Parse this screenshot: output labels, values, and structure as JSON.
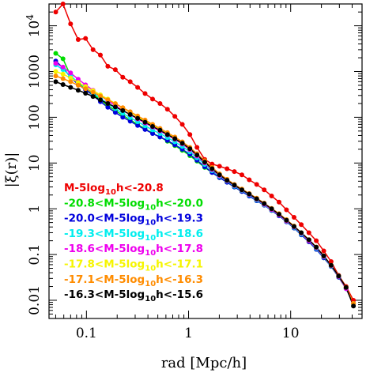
{
  "chart_data": {
    "type": "line",
    "title": "",
    "xlabel": "rad [Mpc/h]",
    "ylabel": "|ξ(r)|",
    "xscale": "log",
    "yscale": "log",
    "xlim": [
      0.043,
      50
    ],
    "ylim": [
      0.004,
      30000
    ],
    "x_ticks": [
      {
        "value": 0.1,
        "label": "0.1"
      },
      {
        "value": 1,
        "label": "1"
      },
      {
        "value": 10,
        "label": "10"
      }
    ],
    "y_ticks": [
      {
        "value": 0.01,
        "label": "0.01"
      },
      {
        "value": 0.1,
        "label": "0.1"
      },
      {
        "value": 1,
        "label": "1"
      },
      {
        "value": 10,
        "label": "10"
      },
      {
        "value": 100,
        "label": "100"
      },
      {
        "value": 1000,
        "label": "1000"
      },
      {
        "value": 10000,
        "label": "10",
        "sup": "4"
      }
    ],
    "grid": false,
    "legend_position": "bottom-left",
    "x": [
      0.05,
      0.059,
      0.07,
      0.083,
      0.098,
      0.116,
      0.137,
      0.162,
      0.192,
      0.227,
      0.268,
      0.317,
      0.375,
      0.444,
      0.525,
      0.621,
      0.734,
      0.868,
      1.03,
      1.21,
      1.44,
      1.7,
      2.01,
      2.38,
      2.81,
      3.33,
      3.93,
      4.65,
      5.5,
      6.51,
      7.7,
      9.1,
      10.8,
      12.7,
      15.1,
      17.8,
      21.1,
      24.9,
      29.5,
      34.9,
      41.2
    ],
    "series": [
      {
        "name": "M-5log10h<-20.8",
        "color": "#ee0000",
        "values": [
          20000,
          30000,
          11000,
          5000,
          5300,
          3000,
          2300,
          1300,
          1100,
          750,
          600,
          450,
          330,
          250,
          200,
          150,
          105,
          70,
          42,
          22,
          12,
          9.5,
          8.5,
          7.5,
          6.5,
          5.5,
          4.3,
          3.4,
          2.6,
          1.9,
          1.4,
          0.95,
          0.65,
          0.45,
          0.3,
          0.2,
          0.12,
          0.07,
          0.035,
          0.02,
          0.01
        ]
      },
      {
        "name": "-20.8<M-5log10h<-20.0",
        "color": "#00dd00",
        "values": [
          2500,
          1900,
          800,
          550,
          420,
          320,
          240,
          180,
          140,
          110,
          88,
          70,
          56,
          45,
          37,
          30,
          24,
          19,
          14.5,
          11,
          8,
          6.2,
          4.8,
          3.8,
          3.0,
          2.4,
          1.9,
          1.5,
          1.2,
          0.92,
          0.7,
          0.52,
          0.38,
          0.27,
          0.19,
          0.13,
          0.085,
          0.055,
          0.032,
          0.018,
          0.0085
        ]
      },
      {
        "name": "-20.0<M-5log10h<-19.3",
        "color": "#0000dd",
        "values": [
          1700,
          1200,
          750,
          520,
          400,
          300,
          220,
          165,
          128,
          100,
          82,
          66,
          54,
          44,
          37,
          31,
          25,
          20,
          15.5,
          11.5,
          8.3,
          6.2,
          4.8,
          3.8,
          3.0,
          2.4,
          1.9,
          1.5,
          1.2,
          0.92,
          0.7,
          0.52,
          0.38,
          0.27,
          0.19,
          0.13,
          0.085,
          0.055,
          0.032,
          0.018,
          0.0085
        ]
      },
      {
        "name": "-19.3<M-5log10h<-18.6",
        "color": "#00eeee",
        "values": [
          1400,
          1100,
          800,
          580,
          440,
          340,
          260,
          200,
          155,
          122,
          98,
          80,
          65,
          53,
          44,
          36,
          29,
          23,
          17.5,
          13,
          9.3,
          6.8,
          5.1,
          4.0,
          3.1,
          2.5,
          2.0,
          1.55,
          1.22,
          0.94,
          0.72,
          0.53,
          0.39,
          0.28,
          0.2,
          0.135,
          0.088,
          0.056,
          0.033,
          0.018,
          0.0085
        ]
      },
      {
        "name": "-18.6<M-5log10h<-17.8",
        "color": "#ee00ee",
        "values": [
          1500,
          1250,
          930,
          680,
          510,
          390,
          300,
          230,
          180,
          142,
          114,
          92,
          75,
          61,
          50,
          41,
          33,
          26,
          19.5,
          14.2,
          10,
          7.2,
          5.3,
          4.1,
          3.2,
          2.55,
          2.05,
          1.6,
          1.25,
          0.96,
          0.73,
          0.54,
          0.4,
          0.29,
          0.2,
          0.14,
          0.09,
          0.057,
          0.033,
          0.018,
          0.0085
        ]
      },
      {
        "name": "-17.8<M-5log10h<-17.1",
        "color": "#f5f500",
        "values": [
          1000,
          880,
          720,
          580,
          470,
          380,
          310,
          250,
          200,
          160,
          128,
          103,
          83,
          67,
          54,
          44,
          35,
          27,
          20.5,
          15,
          10.5,
          7.5,
          5.5,
          4.2,
          3.3,
          2.6,
          2.1,
          1.65,
          1.3,
          1.0,
          0.76,
          0.56,
          0.41,
          0.3,
          0.21,
          0.145,
          0.093,
          0.058,
          0.034,
          0.019,
          0.0085
        ]
      },
      {
        "name": "-17.1<M-5log10h<-16.3",
        "color": "#ff8c00",
        "values": [
          800,
          700,
          600,
          500,
          420,
          350,
          290,
          240,
          198,
          162,
          132,
          107,
          87,
          70,
          57,
          46,
          37,
          29,
          22,
          16,
          11.2,
          8,
          5.8,
          4.4,
          3.4,
          2.7,
          2.15,
          1.7,
          1.33,
          1.02,
          0.78,
          0.58,
          0.42,
          0.3,
          0.21,
          0.145,
          0.093,
          0.058,
          0.034,
          0.019,
          0.0085
        ]
      },
      {
        "name": "-16.3<M-5log10h<-15.6",
        "color": "#000000",
        "values": [
          600,
          520,
          450,
          390,
          335,
          285,
          240,
          200,
          168,
          140,
          115,
          95,
          78,
          63,
          52,
          42,
          34,
          27,
          20.5,
          15,
          10.5,
          7.5,
          5.5,
          4.2,
          3.3,
          2.6,
          2.1,
          1.65,
          1.3,
          1.0,
          0.76,
          0.56,
          0.41,
          0.3,
          0.21,
          0.145,
          0.093,
          0.058,
          0.034,
          0.019,
          0.0075
        ]
      }
    ]
  }
}
